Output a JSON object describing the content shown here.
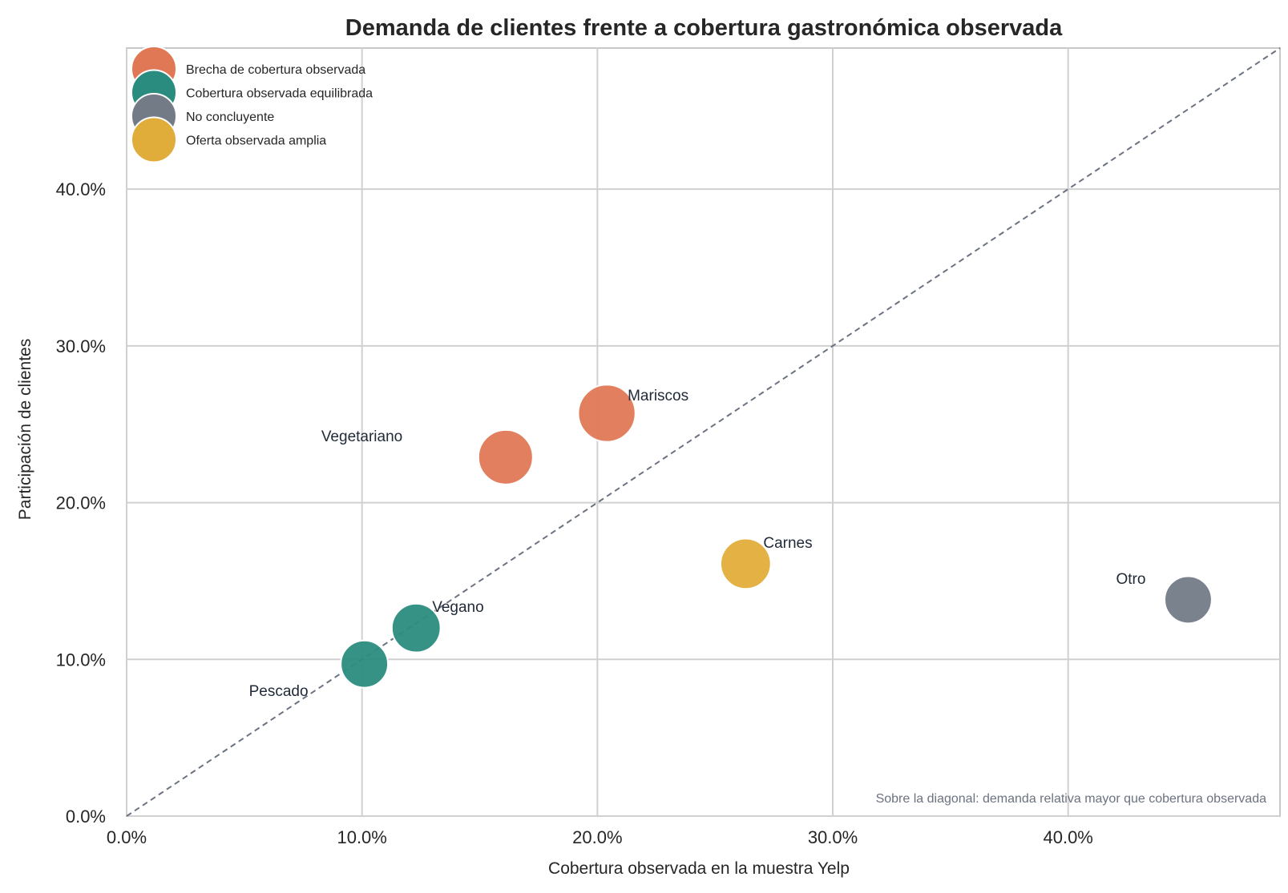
{
  "chart_data": {
    "type": "scatter",
    "title": "Demanda de clientes frente a cobertura gastronómica observada",
    "xlabel": "Cobertura observada en la muestra Yelp",
    "ylabel": "Participación de clientes",
    "xlim": [
      0,
      0.49
    ],
    "ylim": [
      0,
      0.49
    ],
    "x_ticks": [
      0,
      0.1,
      0.2,
      0.3,
      0.4
    ],
    "y_ticks": [
      0,
      0.1,
      0.2,
      0.3,
      0.4
    ],
    "x_tick_labels": [
      "0.0%",
      "10.0%",
      "20.0%",
      "30.0%",
      "40.0%"
    ],
    "y_tick_labels": [
      "0.0%",
      "10.0%",
      "20.0%",
      "30.0%",
      "40.0%"
    ],
    "grid": true,
    "legend_position": "top-left",
    "diagonal": {
      "style": "dashed",
      "color": "#6b7280"
    },
    "note": "Sobre la diagonal: demanda relativa mayor que cobertura observada",
    "legend": [
      {
        "label": "Brecha de cobertura observada",
        "color": "#e07856"
      },
      {
        "label": "Cobertura observada equilibrada",
        "color": "#2a8c7e"
      },
      {
        "label": "No concluyente",
        "color": "#737b87"
      },
      {
        "label": "Oferta observada amplia",
        "color": "#e1ad3a"
      }
    ],
    "points": [
      {
        "label": "Vegetariano",
        "x": 0.161,
        "y": 0.229,
        "category": "Brecha de cobertura observada",
        "color": "#e07856",
        "size": 1.0
      },
      {
        "label": "Mariscos",
        "x": 0.204,
        "y": 0.257,
        "category": "Brecha de cobertura observada",
        "color": "#e07856",
        "size": 1.1
      },
      {
        "label": "Carnes",
        "x": 0.263,
        "y": 0.161,
        "category": "Oferta observada amplia",
        "color": "#e1ad3a",
        "size": 0.85
      },
      {
        "label": "Otro",
        "x": 0.451,
        "y": 0.138,
        "category": "No concluyente",
        "color": "#737b87",
        "size": 0.75
      },
      {
        "label": "Vegano",
        "x": 0.123,
        "y": 0.12,
        "category": "Cobertura observada equilibrada",
        "color": "#2a8c7e",
        "size": 0.8
      },
      {
        "label": "Pescado",
        "x": 0.101,
        "y": 0.097,
        "category": "Cobertura observada equilibrada",
        "color": "#2a8c7e",
        "size": 0.75
      }
    ]
  }
}
